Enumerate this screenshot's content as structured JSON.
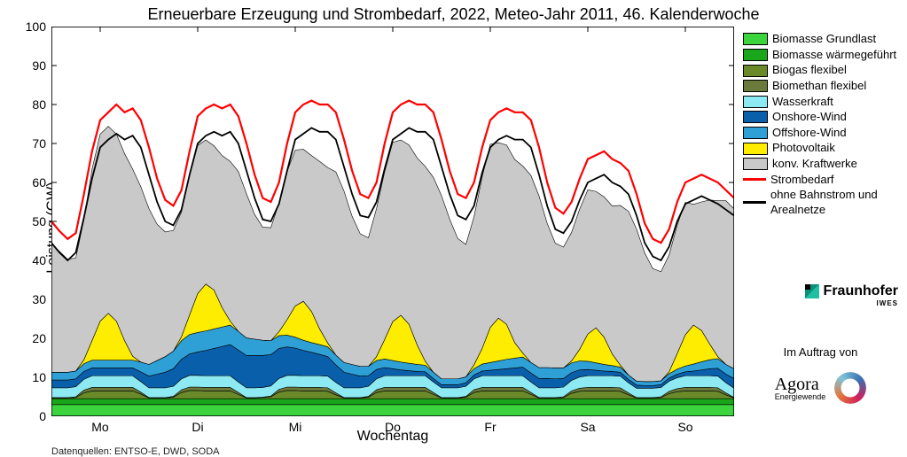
{
  "title": "Erneuerbare Erzeugung und Strombedarf, 2022, Meteo-Jahr 2011, 46. Kalenderwoche",
  "xlabel": "Wochentag",
  "ylabel": "Leistung (GW)",
  "footnote": "Datenquellen: ENTSO-E, DWD, SODA",
  "im_auftrag": "Im Auftrag von",
  "fraunhofer": "Fraunhofer",
  "fraunhofer_sub": "IWES",
  "agora": "Agora",
  "agora_sub": "Energiewende",
  "chart": {
    "type": "stacked-area+lines",
    "xlim": [
      0,
      168
    ],
    "ylim": [
      0,
      100
    ],
    "ytick_step": 10,
    "xtick_positions": [
      12,
      36,
      60,
      84,
      108,
      132,
      156
    ],
    "xtick_labels": [
      "Mo",
      "Di",
      "Mi",
      "Do",
      "Fr",
      "Sa",
      "So"
    ],
    "background_color": "#ffffff",
    "axis_color": "#000000",
    "grid": false,
    "x_hours": [
      0,
      2,
      4,
      6,
      8,
      10,
      12,
      14,
      16,
      18,
      20,
      22,
      24,
      26,
      28,
      30,
      32,
      34,
      36,
      38,
      40,
      42,
      44,
      46,
      48,
      50,
      52,
      54,
      56,
      58,
      60,
      62,
      64,
      66,
      68,
      70,
      72,
      74,
      76,
      78,
      80,
      82,
      84,
      86,
      88,
      90,
      92,
      94,
      96,
      98,
      100,
      102,
      104,
      106,
      108,
      110,
      112,
      114,
      116,
      118,
      120,
      122,
      124,
      126,
      128,
      130,
      132,
      134,
      136,
      138,
      140,
      142,
      144,
      146,
      148,
      150,
      152,
      154,
      156,
      158,
      160,
      162,
      164,
      166,
      168
    ],
    "series": [
      {
        "name": "Biomasse Grundlast",
        "color": "#3cd43c",
        "values": [
          3,
          3,
          3,
          3,
          3,
          3,
          3,
          3,
          3,
          3,
          3,
          3,
          3,
          3,
          3,
          3,
          3,
          3,
          3,
          3,
          3,
          3,
          3,
          3,
          3,
          3,
          3,
          3,
          3,
          3,
          3,
          3,
          3,
          3,
          3,
          3,
          3,
          3,
          3,
          3,
          3,
          3,
          3,
          3,
          3,
          3,
          3,
          3,
          3,
          3,
          3,
          3,
          3,
          3,
          3,
          3,
          3,
          3,
          3,
          3,
          3,
          3,
          3,
          3,
          3,
          3,
          3,
          3,
          3,
          3,
          3,
          3,
          3,
          3,
          3,
          3,
          3,
          3,
          3,
          3,
          3,
          3,
          3,
          3,
          3
        ]
      },
      {
        "name": "Biomasse wärmegeführt",
        "color": "#1aa61a",
        "values": [
          1.5,
          1.5,
          1.5,
          1.5,
          1.5,
          1.5,
          1.5,
          1.5,
          1.5,
          1.5,
          1.5,
          1.5,
          1.5,
          1.5,
          1.5,
          1.5,
          1.5,
          1.5,
          1.5,
          1.5,
          1.5,
          1.5,
          1.5,
          1.5,
          1.5,
          1.5,
          1.5,
          1.5,
          1.5,
          1.5,
          1.5,
          1.5,
          1.5,
          1.5,
          1.5,
          1.5,
          1.5,
          1.5,
          1.5,
          1.5,
          1.5,
          1.5,
          1.5,
          1.5,
          1.5,
          1.5,
          1.5,
          1.5,
          1.5,
          1.5,
          1.5,
          1.5,
          1.5,
          1.5,
          1.5,
          1.5,
          1.5,
          1.5,
          1.5,
          1.5,
          1.5,
          1.5,
          1.5,
          1.5,
          1.5,
          1.5,
          1.5,
          1.5,
          1.5,
          1.5,
          1.5,
          1.5,
          1.5,
          1.5,
          1.5,
          1.5,
          1.5,
          1.5,
          1.5,
          1.5,
          1.5,
          1.5,
          1.5,
          1.5,
          1.5
        ]
      },
      {
        "name": "Biogas flexibel",
        "color": "#6a8a2a",
        "values": [
          0.2,
          0.2,
          0.2,
          0.3,
          1.5,
          2,
          2,
          2,
          2,
          2,
          2,
          1.2,
          0.2,
          0.2,
          0.2,
          0.4,
          1.6,
          2.1,
          2.1,
          2,
          2,
          2,
          2,
          1.1,
          0.2,
          0.2,
          0.3,
          0.5,
          1.7,
          2.1,
          2.1,
          2,
          2,
          2,
          1.9,
          1.0,
          0.2,
          0.2,
          0.2,
          0.4,
          1.6,
          2,
          2,
          2,
          2,
          2,
          2,
          1.1,
          0.2,
          0.2,
          0.2,
          0.4,
          1.6,
          2,
          2,
          2,
          2,
          2,
          2,
          1.1,
          0.2,
          0.2,
          0.2,
          0.3,
          1.4,
          1.9,
          2,
          2,
          2,
          2,
          1.9,
          1.0,
          0.2,
          0.2,
          0.2,
          0.3,
          1.3,
          1.8,
          2,
          2,
          2,
          2,
          1.9,
          1.0,
          0.2
        ]
      },
      {
        "name": "Biomethan flexibel",
        "color": "#6a7a3a",
        "values": [
          0.1,
          0.1,
          0.1,
          0.2,
          0.7,
          0.9,
          0.9,
          0.9,
          0.9,
          0.9,
          0.9,
          0.5,
          0.1,
          0.1,
          0.1,
          0.2,
          0.7,
          0.9,
          0.9,
          0.9,
          0.9,
          0.9,
          0.9,
          0.5,
          0.1,
          0.1,
          0.1,
          0.2,
          0.7,
          0.9,
          0.9,
          0.9,
          0.9,
          0.9,
          0.9,
          0.5,
          0.1,
          0.1,
          0.1,
          0.2,
          0.7,
          0.9,
          0.9,
          0.9,
          0.9,
          0.9,
          0.9,
          0.5,
          0.1,
          0.1,
          0.1,
          0.2,
          0.7,
          0.9,
          0.9,
          0.9,
          0.9,
          0.9,
          0.9,
          0.5,
          0.1,
          0.1,
          0.1,
          0.2,
          0.6,
          0.8,
          0.9,
          0.9,
          0.9,
          0.9,
          0.9,
          0.5,
          0.1,
          0.1,
          0.1,
          0.2,
          0.6,
          0.8,
          0.9,
          0.9,
          0.9,
          0.9,
          0.9,
          0.5,
          0.1
        ]
      },
      {
        "name": "Wasserkraft",
        "color": "#8de9f2",
        "values": [
          2.5,
          2.5,
          2.5,
          2.6,
          2.8,
          3,
          3,
          3,
          3,
          3,
          3,
          2.7,
          2.5,
          2.5,
          2.5,
          2.6,
          2.8,
          3,
          3,
          3,
          3,
          3,
          3,
          2.7,
          2.5,
          2.5,
          2.5,
          2.6,
          2.8,
          3,
          3,
          3,
          3,
          3,
          3,
          2.7,
          2.5,
          2.5,
          2.5,
          2.6,
          2.8,
          3,
          3,
          3,
          3,
          3,
          3,
          2.7,
          2.5,
          2.5,
          2.5,
          2.6,
          2.8,
          3,
          3,
          3,
          3,
          3,
          3,
          2.7,
          2.5,
          2.5,
          2.5,
          2.5,
          2.7,
          2.9,
          3,
          3,
          3,
          3,
          3,
          2.6,
          2.4,
          2.4,
          2.4,
          2.4,
          2.6,
          2.8,
          3,
          3,
          3,
          3,
          3,
          2.6,
          2.4
        ]
      },
      {
        "name": "Onshore-Wind",
        "color": "#0a5fab",
        "values": [
          2,
          2,
          2,
          2,
          2,
          2,
          2,
          2,
          2,
          2,
          2,
          2.5,
          3,
          3.5,
          4,
          4.5,
          5,
          5.5,
          6,
          6.5,
          7,
          7.5,
          8,
          8.2,
          8.3,
          8.3,
          8.2,
          8,
          7.7,
          7.3,
          7,
          6.5,
          6,
          5.5,
          5,
          4.5,
          4,
          3.5,
          3,
          2.7,
          2.4,
          2.1,
          1.8,
          1.5,
          1.3,
          1.1,
          1,
          0.9,
          0.8,
          0.8,
          0.8,
          0.9,
          1,
          1.2,
          1.4,
          1.6,
          1.8,
          2,
          2.2,
          2.3,
          2.4,
          2.4,
          2.3,
          2.2,
          2,
          1.8,
          1.6,
          1.4,
          1.2,
          1.1,
          1.0,
          0.9,
          0.8,
          0.7,
          0.7,
          0.7,
          0.8,
          0.9,
          1.0,
          1.2,
          1.5,
          1.8,
          2.0,
          2.2,
          2.5
        ]
      },
      {
        "name": "Offshore-Wind",
        "color": "#2ea0d6",
        "values": [
          2,
          2,
          2,
          2,
          2,
          2,
          2,
          2,
          2,
          2,
          2,
          2.5,
          3,
          3.5,
          4,
          4.5,
          4.8,
          5,
          5,
          5,
          5,
          5,
          5,
          4.8,
          4.5,
          4.2,
          3.9,
          3.6,
          3.3,
          3,
          2.8,
          2.6,
          2.5,
          2.5,
          2.5,
          2.5,
          2.5,
          2.5,
          2.5,
          2.4,
          2.3,
          2.2,
          2.1,
          2,
          1.9,
          1.8,
          1.7,
          1.6,
          1.5,
          1.5,
          1.5,
          1.5,
          1.6,
          1.8,
          2.0,
          2.2,
          2.4,
          2.5,
          2.6,
          2.7,
          2.8,
          2.8,
          2.8,
          2.7,
          2.5,
          2.3,
          2.1,
          1.9,
          1.7,
          1.5,
          1.3,
          1.1,
          1.0,
          1.0,
          1.0,
          1.0,
          1.1,
          1.3,
          1.5,
          1.8,
          2.1,
          2.3,
          2.5,
          2.5,
          2.5
        ]
      },
      {
        "name": "Photovoltaik",
        "color": "#ffed00",
        "values": [
          0,
          0,
          0,
          0,
          1,
          5,
          10,
          12,
          10,
          5,
          1,
          0,
          0,
          0,
          0,
          0,
          1,
          5,
          10,
          12,
          10,
          5,
          1,
          0,
          0,
          0,
          0,
          0,
          1,
          4,
          8,
          10,
          8,
          4,
          1,
          0,
          0,
          0,
          0,
          0,
          1,
          5,
          10,
          12,
          10,
          5,
          1,
          0,
          0,
          0,
          0,
          0,
          1,
          4,
          9,
          11,
          9,
          4,
          1,
          0,
          0,
          0,
          0,
          0,
          0.5,
          3,
          7,
          9,
          7,
          3,
          0.5,
          0,
          0,
          0,
          0,
          0,
          0.5,
          4,
          8,
          10,
          8,
          4,
          0.5,
          0,
          0
        ]
      },
      {
        "name": "konv. Kraftwerke",
        "color": "#c9c9c9",
        "values": [
          33,
          31,
          29,
          29,
          36,
          44,
          48,
          48,
          48,
          48,
          48,
          45,
          40,
          35,
          32,
          31,
          32,
          36,
          38,
          37,
          37,
          39,
          41,
          41,
          37,
          32,
          29,
          29,
          33,
          38,
          40,
          39,
          40,
          43,
          45,
          47,
          44,
          38,
          34,
          33,
          38,
          43,
          46,
          45,
          46,
          48,
          50,
          50,
          47,
          41,
          36,
          34,
          38,
          44,
          47,
          45,
          46,
          47,
          48,
          48,
          44,
          37,
          32,
          31,
          33,
          36,
          37,
          35,
          36,
          38,
          41,
          42,
          39,
          33,
          29,
          28,
          30,
          33,
          34,
          31,
          33,
          37,
          40,
          42,
          41
        ]
      }
    ],
    "lines": [
      {
        "name": "Strombedarf",
        "color": "#ff0000",
        "width": 2.2,
        "values": [
          50,
          47.5,
          45.5,
          47,
          57,
          68,
          76,
          78,
          80,
          78,
          79,
          76,
          69,
          61,
          55.5,
          54,
          58,
          68,
          77,
          79,
          80,
          79,
          80,
          77,
          70,
          62,
          56,
          55,
          60,
          70,
          78,
          80,
          81,
          80,
          80,
          78,
          71,
          63,
          57,
          56,
          60,
          70,
          78,
          80,
          81,
          80,
          80,
          78,
          71,
          63,
          57,
          56,
          60,
          69,
          76,
          78,
          79,
          78,
          78,
          76,
          69,
          60,
          53.5,
          52,
          55,
          61,
          66,
          67,
          68,
          66,
          65,
          63,
          57,
          49.5,
          45.5,
          44.5,
          48,
          55,
          60,
          61,
          62,
          61,
          60,
          58,
          56
        ]
      },
      {
        "name": "ohne Bahnstrom und Arealnetze",
        "color": "#000000",
        "width": 1.8,
        "values": [
          44.5,
          42,
          40,
          42,
          51,
          61,
          69,
          71,
          72.5,
          71,
          72,
          69,
          62,
          55,
          50,
          49,
          53,
          62,
          70,
          72,
          73,
          72,
          73,
          70,
          63,
          56,
          50.5,
          50,
          54.5,
          63,
          71,
          72.5,
          74,
          73,
          73,
          71,
          64,
          57,
          51.5,
          51,
          55,
          63.5,
          71,
          72.5,
          74,
          73,
          73,
          71,
          64,
          57,
          51.5,
          50.5,
          54,
          62.5,
          69,
          71,
          72,
          71,
          71,
          69,
          62,
          54,
          48,
          47,
          50,
          55.5,
          60,
          61,
          62,
          60,
          59,
          57,
          51.5,
          44.5,
          41,
          40,
          43.5,
          50,
          54.5,
          55.5,
          56.5,
          55.5,
          54.5,
          53,
          51.5
        ]
      }
    ]
  },
  "legend": {
    "items": [
      {
        "type": "sw",
        "color": "#3cd43c",
        "label": "Biomasse Grundlast"
      },
      {
        "type": "sw",
        "color": "#1aa61a",
        "label": "Biomasse wärmegeführt"
      },
      {
        "type": "sw",
        "color": "#6a8a2a",
        "label": "Biogas flexibel"
      },
      {
        "type": "sw",
        "color": "#6a7a3a",
        "label": "Biomethan flexibel"
      },
      {
        "type": "sw",
        "color": "#8de9f2",
        "label": "Wasserkraft"
      },
      {
        "type": "sw",
        "color": "#0a5fab",
        "label": "Onshore-Wind"
      },
      {
        "type": "sw",
        "color": "#2ea0d6",
        "label": "Offshore-Wind"
      },
      {
        "type": "sw",
        "color": "#ffed00",
        "label": "Photovoltaik"
      },
      {
        "type": "sw",
        "color": "#c9c9c9",
        "label": "konv. Kraftwerke"
      },
      {
        "type": "line",
        "color": "#ff0000",
        "label": "Strombedarf"
      },
      {
        "type": "line",
        "color": "#000000",
        "label": "ohne Bahnstrom und Arealnetze"
      }
    ]
  }
}
